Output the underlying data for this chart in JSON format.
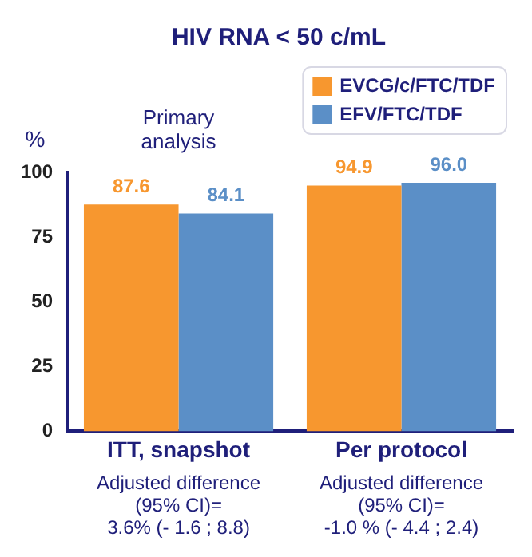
{
  "chart_data": {
    "type": "bar",
    "title": "HIV RNA < 50 c/mL",
    "ylabel": "%",
    "categories": [
      "ITT, snapshot",
      "Per protocol"
    ],
    "series": [
      {
        "name": "EVCG/c/FTC/TDF",
        "color": "#f7972f",
        "values": [
          87.6,
          94.9
        ]
      },
      {
        "name": "EFV/FTC/TDF",
        "color": "#5b8fc7",
        "values": [
          84.1,
          96.0
        ]
      }
    ],
    "value_labels": [
      [
        "87.6",
        "94.9"
      ],
      [
        "84.1",
        "96.0"
      ]
    ],
    "annotations": [
      "Primary analysis",
      "Adjusted difference (95% CI)= 3.6% (- 1.6 ; 8.8)",
      "Adjusted difference (95% CI)= -1.0 % (- 4.4 ; 2.4)"
    ],
    "ylim": [
      0,
      100
    ],
    "yticks": [
      0,
      25,
      50,
      75,
      100
    ],
    "grid": false,
    "legend": "top right"
  }
}
